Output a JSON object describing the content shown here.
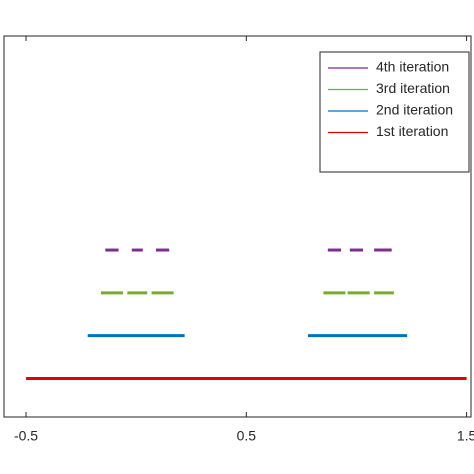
{
  "chart_data": {
    "type": "line",
    "xlim": [
      -0.6,
      1.52
    ],
    "xticks": [
      -0.5,
      0.5,
      1.5
    ],
    "ylim": [
      0.1,
      9
    ],
    "legend": "upper right",
    "series": [
      {
        "name": "4th iteration",
        "color": "#7e2f8e",
        "x": [
          -0.14,
          -0.08,
          null,
          -0.02,
          0.03,
          null,
          0.09,
          0.15,
          null,
          0.87,
          0.93,
          null,
          0.97,
          1.03,
          null,
          1.08,
          1.16
        ],
        "y": [
          4,
          4,
          null,
          4,
          4,
          null,
          4,
          4,
          null,
          4,
          4,
          null,
          4,
          4,
          null,
          4,
          4
        ]
      },
      {
        "name": "3rd iteration",
        "color": "#77ac30",
        "x": [
          -0.16,
          -0.06,
          null,
          -0.04,
          0.05,
          null,
          0.07,
          0.17,
          null,
          0.85,
          0.95,
          null,
          0.96,
          1.06,
          null,
          1.08,
          1.17
        ],
        "y": [
          3,
          3,
          null,
          3,
          3,
          null,
          3,
          3,
          null,
          3,
          3,
          null,
          3,
          3,
          null,
          3,
          3
        ]
      },
      {
        "name": "2nd iteration",
        "color": "#0072bd",
        "x": [
          -0.22,
          0.22,
          null,
          0.78,
          1.23
        ],
        "y": [
          2,
          2,
          null,
          2,
          2
        ]
      },
      {
        "name": "1st iteration",
        "color": "#e00000",
        "x": [
          -0.5,
          1.5
        ],
        "y": [
          1,
          1
        ]
      }
    ]
  }
}
